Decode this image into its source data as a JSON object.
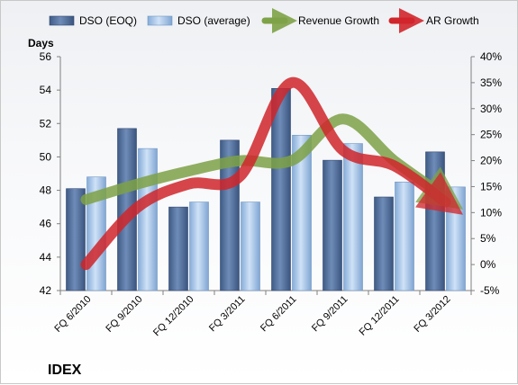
{
  "chart_data": {
    "type": "bar",
    "title": "IDEX",
    "ylabel_left": "Days",
    "categories": [
      "FQ 6/2010",
      "FQ 9/2010",
      "FQ 12/2010",
      "FQ 3/2011",
      "FQ 6/2011",
      "FQ 9/2011",
      "FQ 12/2011",
      "FQ 3/2012"
    ],
    "series": [
      {
        "name": "DSO (EOQ)",
        "kind": "bar",
        "axis": "left",
        "color": "#4f6e9c",
        "values": [
          48.1,
          51.7,
          47.0,
          51.0,
          54.1,
          49.8,
          47.6,
          50.3
        ]
      },
      {
        "name": "DSO (average)",
        "kind": "bar",
        "axis": "left",
        "color": "#a9c8ec",
        "values": [
          48.8,
          50.5,
          47.3,
          47.3,
          51.3,
          50.8,
          48.5,
          48.2
        ]
      },
      {
        "name": "Revenue Growth",
        "kind": "line",
        "axis": "right",
        "color": "#7ea247",
        "values": [
          12.5,
          15.5,
          18.0,
          20.0,
          20.0,
          28.0,
          20.0,
          13.0
        ]
      },
      {
        "name": "AR Growth",
        "kind": "line",
        "axis": "right",
        "color": "#d0262b",
        "values": [
          0.0,
          11.0,
          15.5,
          17.0,
          35.0,
          22.0,
          19.0,
          12.0
        ]
      }
    ],
    "y_left": {
      "min": 42,
      "max": 56,
      "step": 2,
      "ticks": [
        "42",
        "44",
        "46",
        "48",
        "50",
        "52",
        "54",
        "56"
      ]
    },
    "y_right": {
      "min": -5,
      "max": 40,
      "step": 5,
      "ticks": [
        "-5%",
        "0%",
        "5%",
        "10%",
        "15%",
        "20%",
        "25%",
        "30%",
        "35%",
        "40%"
      ]
    },
    "grid": false,
    "legend_position": "top"
  }
}
